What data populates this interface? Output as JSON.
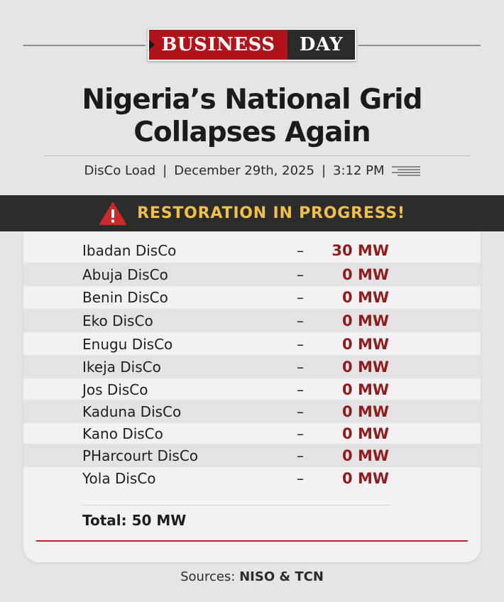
{
  "logo": {
    "left": "BUSINESS",
    "right": "DAY",
    "colors": {
      "left_bg": "#b0141a",
      "right_bg": "#2a2a2a"
    }
  },
  "headline": "Nigeria’s National Grid Collapses Again",
  "meta": {
    "category": "DisCo Load",
    "separator": "|",
    "date": "December 29th, 2025",
    "time": "3:12 PM",
    "icon": "document-lines-icon"
  },
  "banner": {
    "text": "RESTORATION IN PROGRESS!",
    "icon": "warning-icon",
    "color": "#f0bf4e"
  },
  "discos": [
    {
      "name": "Ibadan DisCo",
      "dash": "–",
      "value": "30 MW"
    },
    {
      "name": "Abuja DisCo",
      "dash": "–",
      "value": "0 MW"
    },
    {
      "name": "Benin DisCo",
      "dash": "–",
      "value": "0 MW"
    },
    {
      "name": "Eko DisCo",
      "dash": "–",
      "value": "0 MW"
    },
    {
      "name": "Enugu DisCo",
      "dash": "–",
      "value": "0 MW"
    },
    {
      "name": "Ikeja DisCo",
      "dash": "–",
      "value": "0 MW"
    },
    {
      "name": "Jos DisCo",
      "dash": "–",
      "value": "0 MW"
    },
    {
      "name": "Kaduna DisCo",
      "dash": "–",
      "value": "0 MW"
    },
    {
      "name": "Kano DisCo",
      "dash": "–",
      "value": "0 MW"
    },
    {
      "name": "PHarcourt DisCo",
      "dash": "–",
      "value": "0 MW"
    },
    {
      "name": "Yola DisCo",
      "dash": "–",
      "value": "0 MW"
    }
  ],
  "total": "Total: 50 MW",
  "sources": {
    "label": "Sources:",
    "value": "NISO & TCN"
  }
}
